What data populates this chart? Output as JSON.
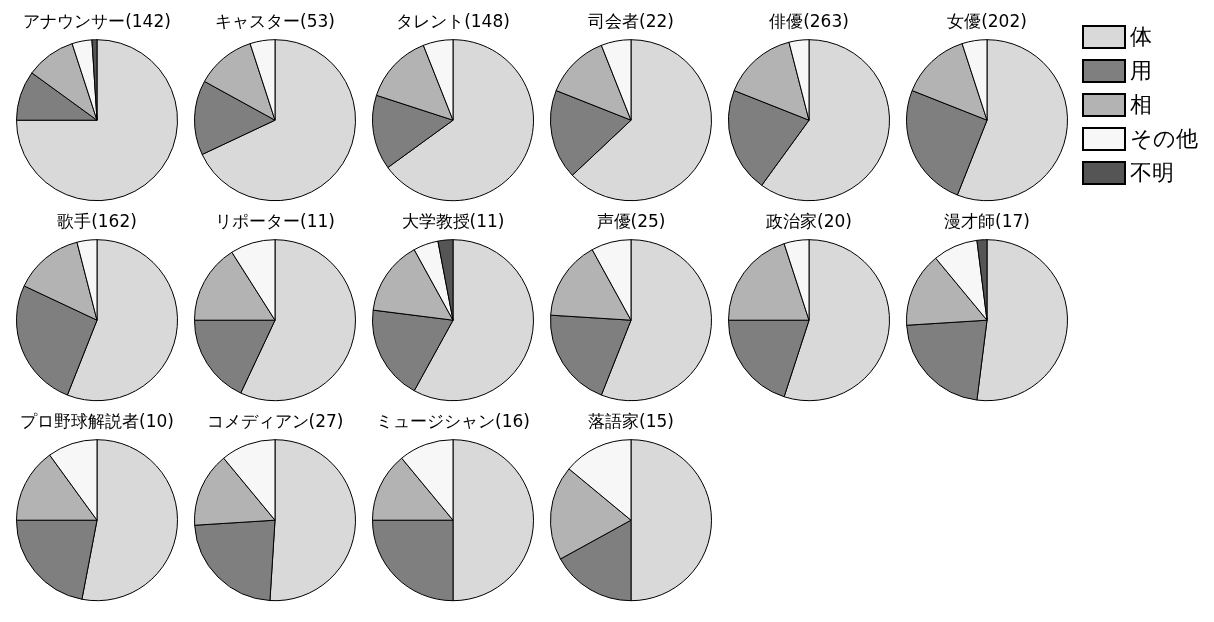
{
  "chart_data": [
    {
      "type": "pie",
      "title": "アナウンサー(142)",
      "categories": [
        null,
        null,
        null,
        null,
        null
      ],
      "values": [
        75,
        10,
        10,
        4,
        1
      ],
      "colors": [
        "#d9d9d9",
        "#7f7f7f",
        "#b3b3b3",
        "#f7f7f7",
        "#555555"
      ]
    },
    {
      "type": "pie",
      "title": "キャスター(53)",
      "categories": [
        null,
        null,
        null,
        null,
        null
      ],
      "values": [
        68,
        15,
        12,
        5,
        0
      ],
      "colors": [
        "#d9d9d9",
        "#7f7f7f",
        "#b3b3b3",
        "#f7f7f7",
        "#555555"
      ]
    },
    {
      "type": "pie",
      "title": "タレント(148)",
      "categories": [
        null,
        null,
        null,
        null,
        null
      ],
      "values": [
        65,
        15,
        14,
        6,
        0
      ],
      "colors": [
        "#d9d9d9",
        "#7f7f7f",
        "#b3b3b3",
        "#f7f7f7",
        "#555555"
      ]
    },
    {
      "type": "pie",
      "title": "司会者(22)",
      "categories": [
        null,
        null,
        null,
        null,
        null
      ],
      "values": [
        63,
        18,
        13,
        6,
        0
      ],
      "colors": [
        "#d9d9d9",
        "#7f7f7f",
        "#b3b3b3",
        "#f7f7f7",
        "#555555"
      ]
    },
    {
      "type": "pie",
      "title": "俳優(263)",
      "categories": [
        null,
        null,
        null,
        null,
        null
      ],
      "values": [
        60,
        21,
        15,
        4,
        0
      ],
      "colors": [
        "#d9d9d9",
        "#7f7f7f",
        "#b3b3b3",
        "#f7f7f7",
        "#555555"
      ]
    },
    {
      "type": "pie",
      "title": "女優(202)",
      "categories": [
        "体",
        "用",
        "相",
        "その他",
        "不明"
      ],
      "values": [
        56,
        25,
        14,
        5,
        0
      ],
      "colors": [
        "#d9d9d9",
        "#7f7f7f",
        "#b3b3b3",
        "#f7f7f7",
        "#555555"
      ],
      "legend": "right"
    },
    {
      "type": "pie",
      "title": "歌手(162)",
      "categories": [
        null,
        null,
        null,
        null,
        null
      ],
      "values": [
        56,
        26,
        14,
        4,
        0
      ],
      "colors": [
        "#d9d9d9",
        "#7f7f7f",
        "#b3b3b3",
        "#f7f7f7",
        "#555555"
      ]
    },
    {
      "type": "pie",
      "title": "リポーター(11)",
      "categories": [
        null,
        null,
        null,
        null,
        null
      ],
      "values": [
        57,
        18,
        16,
        9,
        0
      ],
      "colors": [
        "#d9d9d9",
        "#7f7f7f",
        "#b3b3b3",
        "#f7f7f7",
        "#555555"
      ]
    },
    {
      "type": "pie",
      "title": "大学教授(11)",
      "categories": [
        null,
        null,
        null,
        null,
        null
      ],
      "values": [
        58,
        19,
        15,
        5,
        3
      ],
      "colors": [
        "#d9d9d9",
        "#7f7f7f",
        "#b3b3b3",
        "#f7f7f7",
        "#555555"
      ]
    },
    {
      "type": "pie",
      "title": "声優(25)",
      "categories": [
        null,
        null,
        null,
        null,
        null
      ],
      "values": [
        56,
        20,
        16,
        8,
        0
      ],
      "colors": [
        "#d9d9d9",
        "#7f7f7f",
        "#b3b3b3",
        "#f7f7f7",
        "#555555"
      ]
    },
    {
      "type": "pie",
      "title": "政治家(20)",
      "categories": [
        null,
        null,
        null,
        null,
        null
      ],
      "values": [
        55,
        20,
        20,
        5,
        0
      ],
      "colors": [
        "#d9d9d9",
        "#7f7f7f",
        "#b3b3b3",
        "#f7f7f7",
        "#555555"
      ]
    },
    {
      "type": "pie",
      "title": "漫才師(17)",
      "categories": [
        null,
        null,
        null,
        null,
        null
      ],
      "values": [
        52,
        22,
        15,
        9,
        2
      ],
      "colors": [
        "#d9d9d9",
        "#7f7f7f",
        "#b3b3b3",
        "#f7f7f7",
        "#555555"
      ]
    },
    {
      "type": "pie",
      "title": "プロ野球解説者(10)",
      "categories": [
        null,
        null,
        null,
        null,
        null
      ],
      "values": [
        53,
        22,
        15,
        10,
        0
      ],
      "colors": [
        "#d9d9d9",
        "#7f7f7f",
        "#b3b3b3",
        "#f7f7f7",
        "#555555"
      ]
    },
    {
      "type": "pie",
      "title": "コメディアン(27)",
      "categories": [
        null,
        null,
        null,
        null,
        null
      ],
      "values": [
        51,
        23,
        15,
        11,
        0
      ],
      "colors": [
        "#d9d9d9",
        "#7f7f7f",
        "#b3b3b3",
        "#f7f7f7",
        "#555555"
      ]
    },
    {
      "type": "pie",
      "title": "ミュージシャン(16)",
      "categories": [
        null,
        null,
        null,
        null,
        null
      ],
      "values": [
        50,
        25,
        14,
        11,
        0
      ],
      "colors": [
        "#d9d9d9",
        "#7f7f7f",
        "#b3b3b3",
        "#f7f7f7",
        "#555555"
      ]
    },
    {
      "type": "pie",
      "title": "落語家(15)",
      "categories": [
        null,
        null,
        null,
        null,
        null
      ],
      "values": [
        50,
        17,
        19,
        14,
        0
      ],
      "colors": [
        "#d9d9d9",
        "#7f7f7f",
        "#b3b3b3",
        "#f7f7f7",
        "#555555"
      ]
    }
  ]
}
